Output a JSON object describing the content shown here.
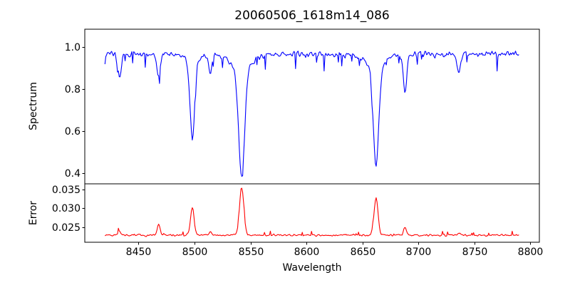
{
  "title": "20060506_1618m14_086",
  "axes": {
    "xlabel": "Wavelength",
    "x_tick_labels": [
      "8450",
      "8500",
      "8550",
      "8600",
      "8650",
      "8700",
      "8750",
      "8800"
    ],
    "xlim": [
      8402,
      8808
    ],
    "spectrum": {
      "ylabel": "Spectrum",
      "y_tick_labels": [
        "0.4",
        "0.6",
        "0.8",
        "1.0"
      ],
      "ylim": [
        0.351,
        1.083
      ]
    },
    "error": {
      "ylabel": "Error",
      "y_tick_labels": [
        "0.025",
        "0.030",
        "0.035"
      ],
      "ylim": [
        0.0209,
        0.0366
      ]
    }
  },
  "chart_data": {
    "type": "line",
    "title": "20060506_1618m14_086",
    "xlabel": "Wavelength",
    "x_range": [
      8420,
      8790
    ],
    "x_step": 0.75,
    "grid": false,
    "legend": "none",
    "seed": 20060506,
    "series": [
      {
        "name": "spectrum",
        "panel": "spectrum",
        "color": "#0000ff",
        "continuum": 0.965,
        "noise_amp": 0.019,
        "spike_prob": 0.06,
        "spike_amp": -0.07,
        "features": [
          {
            "center": 8433.0,
            "depth": 0.11,
            "width": 1.6
          },
          {
            "center": 8468.0,
            "depth": 0.11,
            "width": 1.6
          },
          {
            "center": 8498.02,
            "depth": 0.36,
            "width": 2.0
          },
          {
            "center": 8498.02,
            "depth": 0.035,
            "width": 6.0
          },
          {
            "center": 8514.0,
            "depth": 0.09,
            "width": 1.4
          },
          {
            "center": 8542.09,
            "depth": 0.5,
            "width": 2.6
          },
          {
            "center": 8542.09,
            "depth": 0.08,
            "width": 9.0
          },
          {
            "center": 8662.14,
            "depth": 0.46,
            "width": 2.4
          },
          {
            "center": 8662.14,
            "depth": 0.065,
            "width": 8.0
          },
          {
            "center": 8688.0,
            "depth": 0.18,
            "width": 1.6
          },
          {
            "center": 8736.0,
            "depth": 0.08,
            "width": 1.5
          }
        ]
      },
      {
        "name": "error",
        "panel": "error",
        "color": "#ff0000",
        "continuum": 0.0228,
        "noise_amp": 0.00038,
        "spike_prob": 0.05,
        "spike_amp": 0.0011,
        "features": [
          {
            "center": 8433.0,
            "height": 0.0012,
            "width": 1.2
          },
          {
            "center": 8468.0,
            "height": 0.0029,
            "width": 1.4
          },
          {
            "center": 8498.02,
            "height": 0.0076,
            "width": 1.6
          },
          {
            "center": 8514.0,
            "height": 0.0009,
            "width": 1.2
          },
          {
            "center": 8542.09,
            "height": 0.0128,
            "width": 1.9
          },
          {
            "center": 8662.14,
            "height": 0.01,
            "width": 1.8
          },
          {
            "center": 8688.0,
            "height": 0.0022,
            "width": 1.2
          },
          {
            "center": 8736.0,
            "height": 0.0008,
            "width": 1.2
          }
        ]
      }
    ]
  }
}
